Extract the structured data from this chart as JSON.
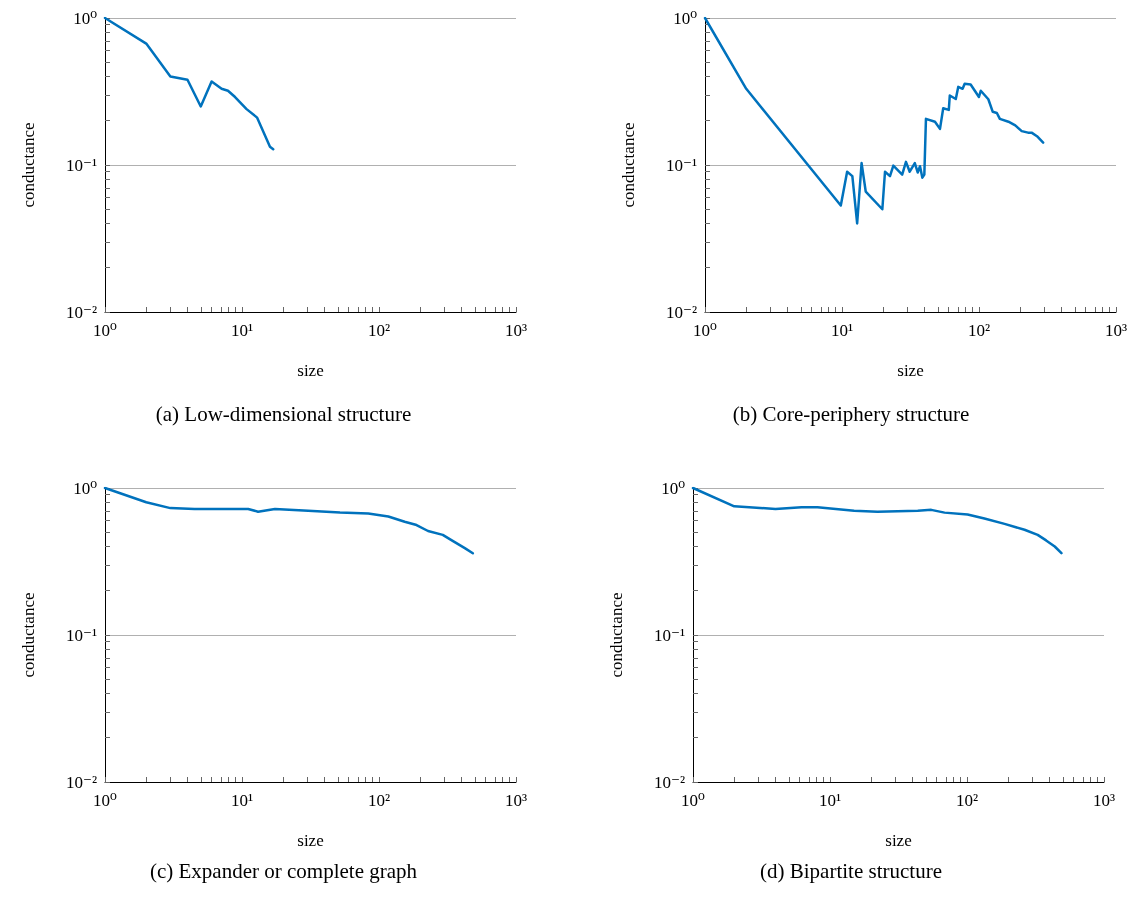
{
  "chart_data": [
    {
      "type": "line",
      "title": "(a) Low-dimensional structure",
      "xlabel": "size",
      "ylabel": "conductance",
      "log": "xy",
      "grid": "y",
      "marker": "none",
      "line_style": "solid",
      "xlim": [
        1,
        1000
      ],
      "ylim": [
        0.01,
        1
      ],
      "xticks": [
        {
          "value": 1,
          "label": "10⁰"
        },
        {
          "value": 2,
          "label": null
        },
        {
          "value": 3,
          "label": null
        },
        {
          "value": 4,
          "label": null
        },
        {
          "value": 5,
          "label": null
        },
        {
          "value": 6,
          "label": null
        },
        {
          "value": 7,
          "label": null
        },
        {
          "value": 8,
          "label": null
        },
        {
          "value": 9,
          "label": null
        },
        {
          "value": 10,
          "label": "10¹"
        },
        {
          "value": 20,
          "label": null
        },
        {
          "value": 30,
          "label": null
        },
        {
          "value": 40,
          "label": null
        },
        {
          "value": 50,
          "label": null
        },
        {
          "value": 60,
          "label": null
        },
        {
          "value": 70,
          "label": null
        },
        {
          "value": 80,
          "label": null
        },
        {
          "value": 90,
          "label": null
        },
        {
          "value": 100,
          "label": "10²"
        },
        {
          "value": 200,
          "label": null
        },
        {
          "value": 300,
          "label": null
        },
        {
          "value": 400,
          "label": null
        },
        {
          "value": 500,
          "label": null
        },
        {
          "value": 600,
          "label": null
        },
        {
          "value": 700,
          "label": null
        },
        {
          "value": 800,
          "label": null
        },
        {
          "value": 900,
          "label": null
        },
        {
          "value": 1000,
          "label": "10³"
        }
      ],
      "yticks": [
        {
          "value": 0.01,
          "label": "10⁻²"
        },
        {
          "value": 0.02,
          "label": null
        },
        {
          "value": 0.03,
          "label": null
        },
        {
          "value": 0.04,
          "label": null
        },
        {
          "value": 0.05,
          "label": null
        },
        {
          "value": 0.06,
          "label": null
        },
        {
          "value": 0.07,
          "label": null
        },
        {
          "value": 0.08,
          "label": null
        },
        {
          "value": 0.09,
          "label": null
        },
        {
          "value": 0.1,
          "label": "10⁻¹"
        },
        {
          "value": 0.2,
          "label": null
        },
        {
          "value": 0.3,
          "label": null
        },
        {
          "value": 0.4,
          "label": null
        },
        {
          "value": 0.5,
          "label": null
        },
        {
          "value": 0.6,
          "label": null
        },
        {
          "value": 0.7,
          "label": null
        },
        {
          "value": 0.8,
          "label": null
        },
        {
          "value": 0.9,
          "label": null
        },
        {
          "value": 1,
          "label": "10⁰"
        }
      ],
      "series": [
        {
          "color": "#0072bd",
          "x": [
            1,
            2,
            3,
            4,
            5,
            6,
            7.1,
            7.9,
            8.9,
            10.8,
            12.9,
            16,
            16.9
          ],
          "values": [
            1,
            0.67,
            0.4,
            0.38,
            0.25,
            0.37,
            0.33,
            0.32,
            0.29,
            0.24,
            0.21,
            0.133,
            0.128
          ]
        }
      ]
    },
    {
      "type": "line",
      "title": "(b) Core-periphery structure",
      "xlabel": "size",
      "ylabel": "conductance",
      "log": "xy",
      "grid": "y",
      "marker": "none",
      "line_style": "solid",
      "xlim": [
        1,
        1000
      ],
      "ylim": [
        0.01,
        1
      ],
      "xticks": [
        {
          "value": 1,
          "label": "10⁰"
        },
        {
          "value": 2,
          "label": null
        },
        {
          "value": 3,
          "label": null
        },
        {
          "value": 4,
          "label": null
        },
        {
          "value": 5,
          "label": null
        },
        {
          "value": 6,
          "label": null
        },
        {
          "value": 7,
          "label": null
        },
        {
          "value": 8,
          "label": null
        },
        {
          "value": 9,
          "label": null
        },
        {
          "value": 10,
          "label": "10¹"
        },
        {
          "value": 20,
          "label": null
        },
        {
          "value": 30,
          "label": null
        },
        {
          "value": 40,
          "label": null
        },
        {
          "value": 50,
          "label": null
        },
        {
          "value": 60,
          "label": null
        },
        {
          "value": 70,
          "label": null
        },
        {
          "value": 80,
          "label": null
        },
        {
          "value": 90,
          "label": null
        },
        {
          "value": 100,
          "label": "10²"
        },
        {
          "value": 200,
          "label": null
        },
        {
          "value": 300,
          "label": null
        },
        {
          "value": 400,
          "label": null
        },
        {
          "value": 500,
          "label": null
        },
        {
          "value": 600,
          "label": null
        },
        {
          "value": 700,
          "label": null
        },
        {
          "value": 800,
          "label": null
        },
        {
          "value": 900,
          "label": null
        },
        {
          "value": 1000,
          "label": "10³"
        }
      ],
      "yticks": [
        {
          "value": 0.01,
          "label": "10⁻²"
        },
        {
          "value": 0.02,
          "label": null
        },
        {
          "value": 0.03,
          "label": null
        },
        {
          "value": 0.04,
          "label": null
        },
        {
          "value": 0.05,
          "label": null
        },
        {
          "value": 0.06,
          "label": null
        },
        {
          "value": 0.07,
          "label": null
        },
        {
          "value": 0.08,
          "label": null
        },
        {
          "value": 0.09,
          "label": null
        },
        {
          "value": 0.1,
          "label": "10⁻¹"
        },
        {
          "value": 0.2,
          "label": null
        },
        {
          "value": 0.3,
          "label": null
        },
        {
          "value": 0.4,
          "label": null
        },
        {
          "value": 0.5,
          "label": null
        },
        {
          "value": 0.6,
          "label": null
        },
        {
          "value": 0.7,
          "label": null
        },
        {
          "value": 0.8,
          "label": null
        },
        {
          "value": 0.9,
          "label": null
        },
        {
          "value": 1,
          "label": "10⁰"
        }
      ],
      "series": [
        {
          "color": "#0072bd",
          "x": [
            1,
            2,
            9.8,
            10.9,
            11.9,
            12.9,
            13.9,
            14.9,
            19.7,
            20.6,
            22.4,
            23.7,
            27.5,
            29.3,
            31.2,
            34,
            35.7,
            37.1,
            38.6,
            39.9,
            41,
            47.7,
            51.9,
            54.8,
            60.2,
            61.2,
            67.7,
            70.6,
            75.9,
            78.6,
            86.9,
            93.2,
            99.9,
            103,
            117,
            126,
            135,
            142,
            164,
            184,
            205,
            228,
            242,
            265,
            294
          ],
          "values": [
            1,
            0.33,
            0.053,
            0.09,
            0.084,
            0.04,
            0.103,
            0.066,
            0.05,
            0.09,
            0.084,
            0.099,
            0.086,
            0.105,
            0.09,
            0.103,
            0.089,
            0.098,
            0.082,
            0.086,
            0.206,
            0.197,
            0.176,
            0.243,
            0.237,
            0.297,
            0.281,
            0.34,
            0.33,
            0.357,
            0.353,
            0.32,
            0.29,
            0.32,
            0.28,
            0.23,
            0.226,
            0.206,
            0.197,
            0.186,
            0.17,
            0.166,
            0.166,
            0.157,
            0.142
          ]
        }
      ]
    },
    {
      "type": "line",
      "title": "(c) Expander or complete graph",
      "xlabel": "size",
      "ylabel": "conductance",
      "log": "xy",
      "grid": "y",
      "marker": "none",
      "line_style": "solid",
      "xlim": [
        1,
        1000
      ],
      "ylim": [
        0.01,
        1
      ],
      "xticks": [
        {
          "value": 1,
          "label": "10⁰"
        },
        {
          "value": 2,
          "label": null
        },
        {
          "value": 3,
          "label": null
        },
        {
          "value": 4,
          "label": null
        },
        {
          "value": 5,
          "label": null
        },
        {
          "value": 6,
          "label": null
        },
        {
          "value": 7,
          "label": null
        },
        {
          "value": 8,
          "label": null
        },
        {
          "value": 9,
          "label": null
        },
        {
          "value": 10,
          "label": "10¹"
        },
        {
          "value": 20,
          "label": null
        },
        {
          "value": 30,
          "label": null
        },
        {
          "value": 40,
          "label": null
        },
        {
          "value": 50,
          "label": null
        },
        {
          "value": 60,
          "label": null
        },
        {
          "value": 70,
          "label": null
        },
        {
          "value": 80,
          "label": null
        },
        {
          "value": 90,
          "label": null
        },
        {
          "value": 100,
          "label": "10²"
        },
        {
          "value": 200,
          "label": null
        },
        {
          "value": 300,
          "label": null
        },
        {
          "value": 400,
          "label": null
        },
        {
          "value": 500,
          "label": null
        },
        {
          "value": 600,
          "label": null
        },
        {
          "value": 700,
          "label": null
        },
        {
          "value": 800,
          "label": null
        },
        {
          "value": 900,
          "label": null
        },
        {
          "value": 1000,
          "label": "10³"
        }
      ],
      "yticks": [
        {
          "value": 0.01,
          "label": "10⁻²"
        },
        {
          "value": 0.02,
          "label": null
        },
        {
          "value": 0.03,
          "label": null
        },
        {
          "value": 0.04,
          "label": null
        },
        {
          "value": 0.05,
          "label": null
        },
        {
          "value": 0.06,
          "label": null
        },
        {
          "value": 0.07,
          "label": null
        },
        {
          "value": 0.08,
          "label": null
        },
        {
          "value": 0.09,
          "label": null
        },
        {
          "value": 0.1,
          "label": "10⁻¹"
        },
        {
          "value": 0.2,
          "label": null
        },
        {
          "value": 0.3,
          "label": null
        },
        {
          "value": 0.4,
          "label": null
        },
        {
          "value": 0.5,
          "label": null
        },
        {
          "value": 0.6,
          "label": null
        },
        {
          "value": 0.7,
          "label": null
        },
        {
          "value": 0.8,
          "label": null
        },
        {
          "value": 0.9,
          "label": null
        },
        {
          "value": 1,
          "label": "10⁰"
        }
      ],
      "series": [
        {
          "color": "#0072bd",
          "x": [
            1,
            2,
            3,
            4.5,
            6,
            11.1,
            13.1,
            17.4,
            30.4,
            51.9,
            83.5,
            117,
            154,
            188,
            228,
            292,
            340,
            423,
            484
          ],
          "values": [
            1,
            0.8,
            0.73,
            0.72,
            0.72,
            0.72,
            0.69,
            0.72,
            0.7,
            0.68,
            0.67,
            0.64,
            0.59,
            0.56,
            0.51,
            0.48,
            0.44,
            0.39,
            0.36
          ]
        }
      ]
    },
    {
      "type": "line",
      "title": "(d) Bipartite structure",
      "xlabel": "size",
      "ylabel": "conductance",
      "log": "xy",
      "grid": "y",
      "marker": "none",
      "line_style": "solid",
      "xlim": [
        1,
        1000
      ],
      "ylim": [
        0.01,
        1
      ],
      "xticks": [
        {
          "value": 1,
          "label": "10⁰"
        },
        {
          "value": 2,
          "label": null
        },
        {
          "value": 3,
          "label": null
        },
        {
          "value": 4,
          "label": null
        },
        {
          "value": 5,
          "label": null
        },
        {
          "value": 6,
          "label": null
        },
        {
          "value": 7,
          "label": null
        },
        {
          "value": 8,
          "label": null
        },
        {
          "value": 9,
          "label": null
        },
        {
          "value": 10,
          "label": "10¹"
        },
        {
          "value": 20,
          "label": null
        },
        {
          "value": 30,
          "label": null
        },
        {
          "value": 40,
          "label": null
        },
        {
          "value": 50,
          "label": null
        },
        {
          "value": 60,
          "label": null
        },
        {
          "value": 70,
          "label": null
        },
        {
          "value": 80,
          "label": null
        },
        {
          "value": 90,
          "label": null
        },
        {
          "value": 100,
          "label": "10²"
        },
        {
          "value": 200,
          "label": null
        },
        {
          "value": 300,
          "label": null
        },
        {
          "value": 400,
          "label": null
        },
        {
          "value": 500,
          "label": null
        },
        {
          "value": 600,
          "label": null
        },
        {
          "value": 700,
          "label": null
        },
        {
          "value": 800,
          "label": null
        },
        {
          "value": 900,
          "label": null
        },
        {
          "value": 1000,
          "label": "10³"
        }
      ],
      "yticks": [
        {
          "value": 0.01,
          "label": "10⁻²"
        },
        {
          "value": 0.02,
          "label": null
        },
        {
          "value": 0.03,
          "label": null
        },
        {
          "value": 0.04,
          "label": null
        },
        {
          "value": 0.05,
          "label": null
        },
        {
          "value": 0.06,
          "label": null
        },
        {
          "value": 0.07,
          "label": null
        },
        {
          "value": 0.08,
          "label": null
        },
        {
          "value": 0.09,
          "label": null
        },
        {
          "value": 0.1,
          "label": "10⁻¹"
        },
        {
          "value": 0.2,
          "label": null
        },
        {
          "value": 0.3,
          "label": null
        },
        {
          "value": 0.4,
          "label": null
        },
        {
          "value": 0.5,
          "label": null
        },
        {
          "value": 0.6,
          "label": null
        },
        {
          "value": 0.7,
          "label": null
        },
        {
          "value": 0.8,
          "label": null
        },
        {
          "value": 0.9,
          "label": null
        },
        {
          "value": 1,
          "label": "10⁰"
        }
      ],
      "series": [
        {
          "color": "#0072bd",
          "x": [
            1,
            2,
            4,
            6.2,
            8.1,
            15,
            22.2,
            43.7,
            54.8,
            68.6,
            101,
            134,
            188,
            263,
            328,
            378,
            437,
            489
          ],
          "values": [
            1,
            0.75,
            0.72,
            0.74,
            0.74,
            0.7,
            0.69,
            0.7,
            0.71,
            0.68,
            0.66,
            0.62,
            0.57,
            0.52,
            0.48,
            0.44,
            0.4,
            0.36
          ]
        }
      ]
    }
  ]
}
